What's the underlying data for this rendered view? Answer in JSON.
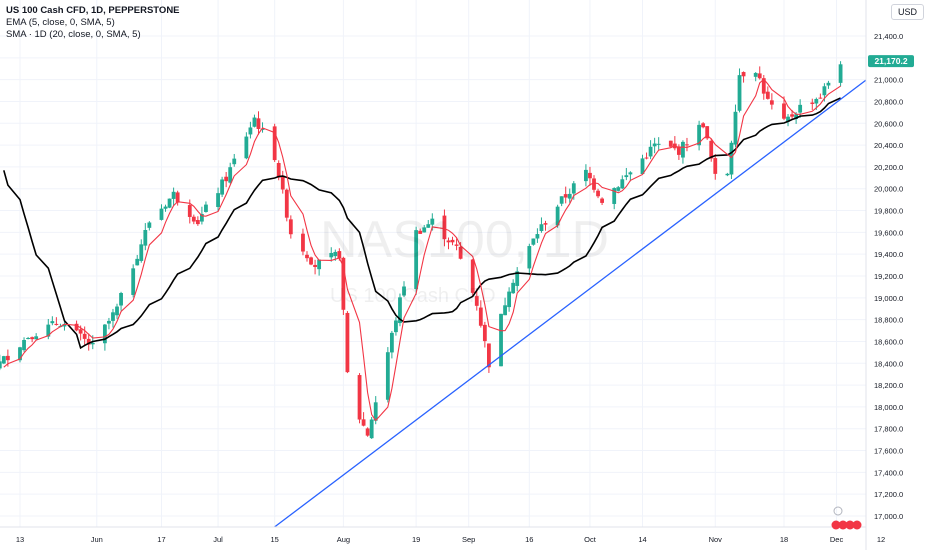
{
  "header": {
    "title": "US 100 Cash CFD, 1D, PEPPERSTONE",
    "indicator_1": "EMA (5, close, 0, SMA, 5)",
    "indicator_2": "SMA · 1D (20, close, 0, SMA, 5)",
    "currency": "USD"
  },
  "watermark": {
    "symbol": "NAS100, 1D",
    "description": "US 100 Cash CFD"
  },
  "colors": {
    "up": "#22ab94",
    "down": "#f23645",
    "ema": "#f23645",
    "sma": "#000000",
    "trendline": "#2962ff",
    "price_label": "#22ab94"
  },
  "chart_data": {
    "type": "candlestick",
    "ylim": [
      16900,
      21600
    ],
    "y_ticks": [
      "17,000.0",
      "17,200.0",
      "17,400.0",
      "17,600.0",
      "17,800.0",
      "18,000.0",
      "18,200.0",
      "18,400.0",
      "18,600.0",
      "18,800.0",
      "19,000.0",
      "19,200.0",
      "19,400.0",
      "19,600.0",
      "19,800.0",
      "20,000.0",
      "20,200.0",
      "20,400.0",
      "20,600.0",
      "20,800.0",
      "21,000.0",
      "21,200.0",
      "21,400.0"
    ],
    "x_ticks": [
      "13",
      "Jun",
      "17",
      "Jul",
      "15",
      "Aug",
      "19",
      "Sep",
      "16",
      "Oct",
      "14",
      "Nov",
      "18",
      "Dec",
      "12"
    ],
    "last_price_label": "21,170.2",
    "last_price": 21170.2,
    "trendline": {
      "from": {
        "date": "2024-07-15",
        "value": 16900
      },
      "to": {
        "date": "2024-12-12",
        "value": 21100
      }
    },
    "series": [
      {
        "name": "EMA (5, close, 0, SMA, 5)"
      },
      {
        "name": "SMA · 1D (20, close, 0, SMA, 5)"
      }
    ]
  }
}
